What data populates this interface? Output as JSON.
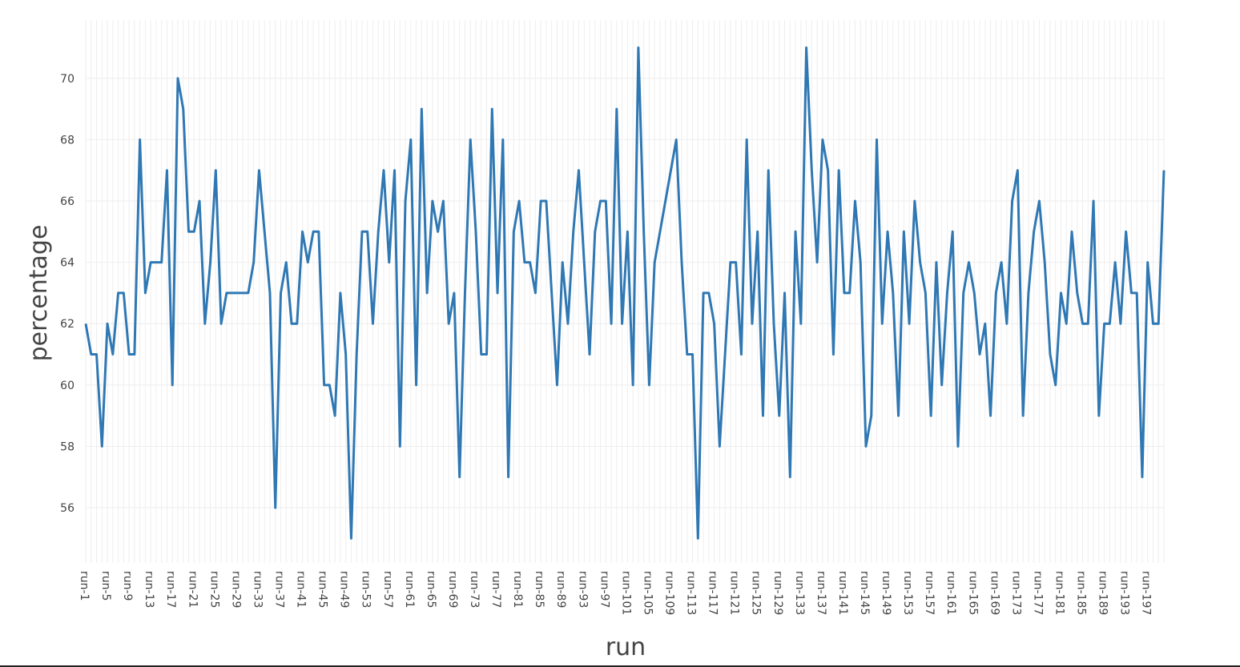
{
  "chart_data": {
    "type": "line",
    "xlabel": "run",
    "ylabel": "percentage",
    "ylim": [
      54.2,
      71.9
    ],
    "yticks": [
      56,
      58,
      60,
      62,
      64,
      66,
      68,
      70
    ],
    "xtick_step": 4,
    "grid": true,
    "legend": "none",
    "line_color": "#2f78b4",
    "categories": [
      "run-1",
      "run-2",
      "run-3",
      "run-4",
      "run-5",
      "run-6",
      "run-7",
      "run-8",
      "run-9",
      "run-10",
      "run-11",
      "run-12",
      "run-13",
      "run-14",
      "run-15",
      "run-16",
      "run-17",
      "run-18",
      "run-19",
      "run-20",
      "run-21",
      "run-22",
      "run-23",
      "run-24",
      "run-25",
      "run-26",
      "run-27",
      "run-28",
      "run-29",
      "run-30",
      "run-31",
      "run-32",
      "run-33",
      "run-34",
      "run-35",
      "run-36",
      "run-37",
      "run-38",
      "run-39",
      "run-40",
      "run-41",
      "run-42",
      "run-43",
      "run-44",
      "run-45",
      "run-46",
      "run-47",
      "run-48",
      "run-49",
      "run-50",
      "run-51",
      "run-52",
      "run-53",
      "run-54",
      "run-55",
      "run-56",
      "run-57",
      "run-58",
      "run-59",
      "run-60",
      "run-61",
      "run-62",
      "run-63",
      "run-64",
      "run-65",
      "run-66",
      "run-67",
      "run-68",
      "run-69",
      "run-70",
      "run-71",
      "run-72",
      "run-73",
      "run-74",
      "run-75",
      "run-76",
      "run-77",
      "run-78",
      "run-79",
      "run-80",
      "run-81",
      "run-82",
      "run-83",
      "run-84",
      "run-85",
      "run-86",
      "run-87",
      "run-88",
      "run-89",
      "run-90",
      "run-91",
      "run-92",
      "run-93",
      "run-94",
      "run-95",
      "run-96",
      "run-97",
      "run-98",
      "run-99",
      "run-100",
      "run-101",
      "run-102",
      "run-103",
      "run-104",
      "run-105",
      "run-106",
      "run-107",
      "run-108",
      "run-109",
      "run-110",
      "run-111",
      "run-112",
      "run-113",
      "run-114",
      "run-115",
      "run-116",
      "run-117",
      "run-118",
      "run-119",
      "run-120",
      "run-121",
      "run-122",
      "run-123",
      "run-124",
      "run-125",
      "run-126",
      "run-127",
      "run-128",
      "run-129",
      "run-130",
      "run-131",
      "run-132",
      "run-133",
      "run-134",
      "run-135",
      "run-136",
      "run-137",
      "run-138",
      "run-139",
      "run-140",
      "run-141",
      "run-142",
      "run-143",
      "run-144",
      "run-145",
      "run-146",
      "run-147",
      "run-148",
      "run-149",
      "run-150",
      "run-151",
      "run-152",
      "run-153",
      "run-154",
      "run-155",
      "run-156",
      "run-157",
      "run-158",
      "run-159",
      "run-160",
      "run-161",
      "run-162",
      "run-163",
      "run-164",
      "run-165",
      "run-166",
      "run-167",
      "run-168",
      "run-169",
      "run-170",
      "run-171",
      "run-172",
      "run-173",
      "run-174",
      "run-175",
      "run-176",
      "run-177",
      "run-178",
      "run-179",
      "run-180",
      "run-181",
      "run-182",
      "run-183",
      "run-184",
      "run-185",
      "run-186",
      "run-187",
      "run-188",
      "run-189",
      "run-190",
      "run-191",
      "run-192",
      "run-193",
      "run-194",
      "run-195",
      "run-196",
      "run-197",
      "run-198",
      "run-199",
      "run-200"
    ],
    "values": [
      62,
      61,
      61,
      58,
      62,
      61,
      63,
      63,
      61,
      61,
      68,
      63,
      64,
      64,
      64,
      67,
      60,
      70,
      69,
      65,
      65,
      66,
      62,
      64,
      67,
      62,
      63,
      63,
      63,
      63,
      63,
      64,
      67,
      65,
      63,
      56,
      63,
      64,
      62,
      62,
      65,
      64,
      65,
      65,
      60,
      60,
      59,
      63,
      61,
      55,
      61,
      65,
      65,
      62,
      65,
      67,
      64,
      67,
      58,
      66,
      68,
      60,
      69,
      63,
      66,
      65,
      66,
      62,
      63,
      57,
      63,
      68,
      65,
      61,
      61,
      69,
      63,
      68,
      57,
      65,
      66,
      64,
      64,
      63,
      66,
      66,
      63,
      60,
      64,
      62,
      65,
      67,
      64,
      61,
      65,
      66,
      66,
      62,
      69,
      62,
      65,
      60,
      71,
      65,
      60,
      64,
      65,
      66,
      67,
      68,
      64,
      61,
      61,
      55,
      63,
      63,
      62,
      58,
      61,
      64,
      64,
      61,
      68,
      62,
      65,
      59,
      67,
      62,
      59,
      63,
      57,
      65,
      62,
      71,
      67,
      64,
      68,
      67,
      61,
      67,
      63,
      63,
      66,
      64,
      58,
      59,
      68,
      62,
      65,
      63,
      59,
      65,
      62,
      66,
      64,
      63,
      59,
      64,
      60,
      63,
      65,
      58,
      63,
      64,
      63,
      61,
      62,
      59,
      63,
      64,
      62,
      66,
      67,
      59,
      63,
      65,
      66,
      64,
      61,
      60,
      63,
      62,
      65,
      63,
      62,
      62,
      66,
      59,
      62,
      62,
      64,
      62,
      65,
      63,
      63,
      57,
      64,
      62,
      62,
      67
    ]
  }
}
